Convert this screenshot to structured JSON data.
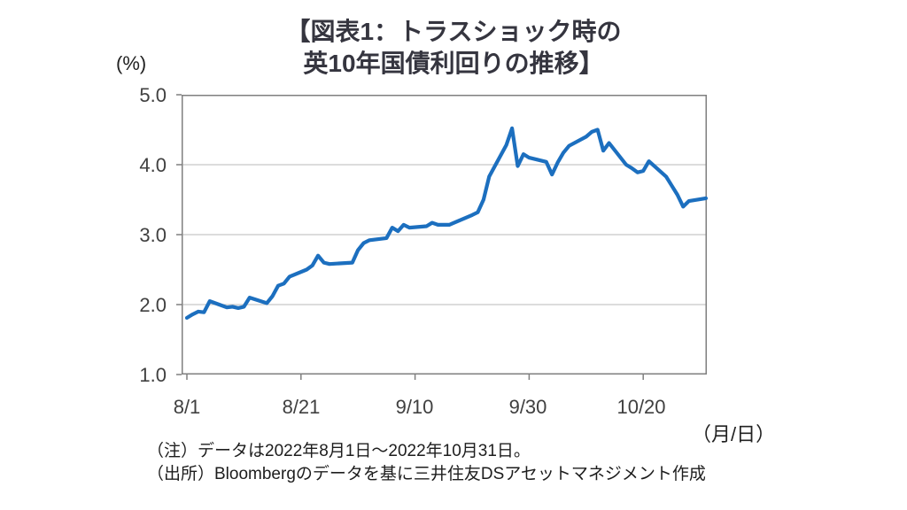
{
  "title": {
    "line1": "【図表1：トラスショック時の",
    "line2": "英10年国債利回りの推移】"
  },
  "axes": {
    "y_unit_label": "(%)",
    "x_unit_label": "（月/日）"
  },
  "notes": {
    "note1": "（注）データは2022年8月1日～2022年10月31日。",
    "note2": "（出所）Bloombergのデータを基に三井住友DSアセットマネジメント作成"
  },
  "colors": {
    "line": "#1c6fbf",
    "frame": "#7f7f7f",
    "grid": "#c8c8c8",
    "title_text": "#35353f",
    "axis_text": "#404040"
  },
  "chart_data": {
    "type": "line",
    "title": "【図表1：トラスショック時のの英10年国債利回りの推移】",
    "ylabel": "(%)",
    "xlabel": "（月/日）",
    "ylim": [
      1.0,
      5.0
    ],
    "ytick_labels": [
      "5.0",
      "4.0",
      "3.0",
      "2.0",
      "1.0"
    ],
    "xtick_labels": [
      "8/1",
      "8/21",
      "9/10",
      "9/30",
      "10/20"
    ],
    "x_range_dates": [
      "8/1",
      "10/31"
    ],
    "grid": "horizontal-only",
    "legend": "none",
    "series": [
      {
        "name": "英10年国債利回り",
        "points": [
          [
            "8/1",
            1.81
          ],
          [
            "8/2",
            1.86
          ],
          [
            "8/3",
            1.9
          ],
          [
            "8/4",
            1.89
          ],
          [
            "8/5",
            2.05
          ],
          [
            "8/8",
            1.96
          ],
          [
            "8/9",
            1.97
          ],
          [
            "8/10",
            1.95
          ],
          [
            "8/11",
            1.97
          ],
          [
            "8/12",
            2.1
          ],
          [
            "8/15",
            2.02
          ],
          [
            "8/16",
            2.12
          ],
          [
            "8/17",
            2.27
          ],
          [
            "8/18",
            2.3
          ],
          [
            "8/19",
            2.4
          ],
          [
            "8/22",
            2.5
          ],
          [
            "8/23",
            2.56
          ],
          [
            "8/24",
            2.7
          ],
          [
            "8/25",
            2.6
          ],
          [
            "8/26",
            2.58
          ],
          [
            "8/30",
            2.6
          ],
          [
            "8/31",
            2.78
          ],
          [
            "9/1",
            2.88
          ],
          [
            "9/2",
            2.92
          ],
          [
            "9/5",
            2.95
          ],
          [
            "9/6",
            3.1
          ],
          [
            "9/7",
            3.05
          ],
          [
            "9/8",
            3.14
          ],
          [
            "9/9",
            3.1
          ],
          [
            "9/12",
            3.12
          ],
          [
            "9/13",
            3.17
          ],
          [
            "9/14",
            3.14
          ],
          [
            "9/15",
            3.14
          ],
          [
            "9/16",
            3.14
          ],
          [
            "9/20",
            3.28
          ],
          [
            "9/21",
            3.32
          ],
          [
            "9/22",
            3.5
          ],
          [
            "9/23",
            3.83
          ],
          [
            "9/26",
            4.28
          ],
          [
            "9/27",
            4.52
          ],
          [
            "9/28",
            3.98
          ],
          [
            "9/29",
            4.15
          ],
          [
            "9/30",
            4.1
          ],
          [
            "10/3",
            4.04
          ],
          [
            "10/4",
            3.86
          ],
          [
            "10/5",
            4.03
          ],
          [
            "10/6",
            4.17
          ],
          [
            "10/7",
            4.27
          ],
          [
            "10/10",
            4.4
          ],
          [
            "10/11",
            4.47
          ],
          [
            "10/12",
            4.5
          ],
          [
            "10/13",
            4.2
          ],
          [
            "10/14",
            4.31
          ],
          [
            "10/17",
            4.0
          ],
          [
            "10/18",
            3.95
          ],
          [
            "10/19",
            3.89
          ],
          [
            "10/20",
            3.91
          ],
          [
            "10/21",
            4.05
          ],
          [
            "10/24",
            3.83
          ],
          [
            "10/25",
            3.7
          ],
          [
            "10/26",
            3.57
          ],
          [
            "10/27",
            3.4
          ],
          [
            "10/28",
            3.48
          ],
          [
            "10/31",
            3.52
          ]
        ]
      }
    ]
  }
}
